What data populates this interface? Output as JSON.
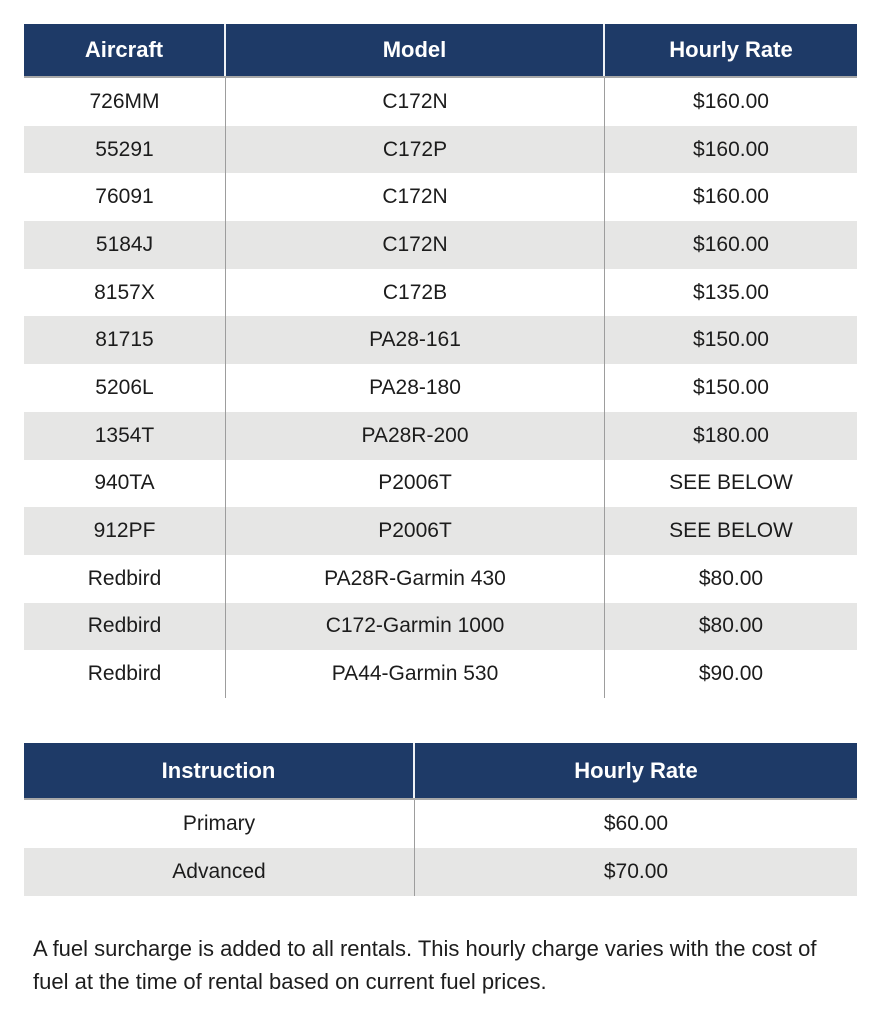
{
  "colors": {
    "header_bg": "#1e3a67",
    "header_text": "#ffffff",
    "row_alt_bg": "#e6e6e5",
    "body_text": "#1c1c1c"
  },
  "aircraft_table": {
    "headers": [
      "Aircraft",
      "Model",
      "Hourly Rate"
    ],
    "rows": [
      {
        "aircraft": "726MM",
        "model": "C172N",
        "rate": "$160.00"
      },
      {
        "aircraft": "55291",
        "model": "C172P",
        "rate": "$160.00"
      },
      {
        "aircraft": "76091",
        "model": "C172N",
        "rate": "$160.00"
      },
      {
        "aircraft": "5184J",
        "model": "C172N",
        "rate": "$160.00"
      },
      {
        "aircraft": "8157X",
        "model": "C172B",
        "rate": "$135.00"
      },
      {
        "aircraft": "81715",
        "model": "PA28-161",
        "rate": "$150.00"
      },
      {
        "aircraft": "5206L",
        "model": "PA28-180",
        "rate": "$150.00"
      },
      {
        "aircraft": "1354T",
        "model": "PA28R-200",
        "rate": "$180.00"
      },
      {
        "aircraft": "940TA",
        "model": "P2006T",
        "rate": "SEE BELOW"
      },
      {
        "aircraft": "912PF",
        "model": "P2006T",
        "rate": "SEE BELOW"
      },
      {
        "aircraft": "Redbird",
        "model": "PA28R-Garmin 430",
        "rate": "$80.00"
      },
      {
        "aircraft": "Redbird",
        "model": "C172-Garmin 1000",
        "rate": "$80.00"
      },
      {
        "aircraft": "Redbird",
        "model": "PA44-Garmin 530",
        "rate": "$90.00"
      }
    ]
  },
  "instruction_table": {
    "headers": [
      "Instruction",
      "Hourly Rate"
    ],
    "rows": [
      {
        "type": "Primary",
        "rate": "$60.00"
      },
      {
        "type": "Advanced",
        "rate": "$70.00"
      }
    ]
  },
  "note": "A fuel surcharge is added to all rentals. This hourly charge varies with the cost of fuel at the time of rental based on current fuel prices."
}
